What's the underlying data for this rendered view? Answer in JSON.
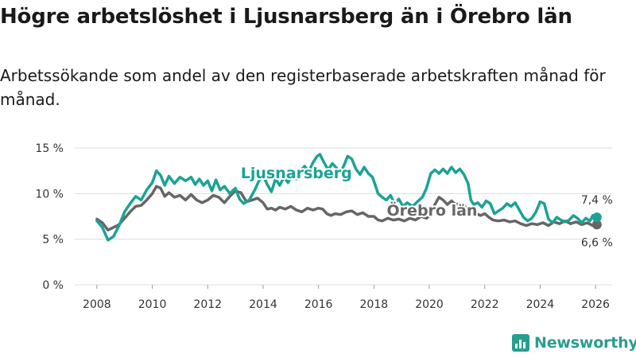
{
  "title": "Högre arbetslöshet i Ljusnarsberg än i Örebro län",
  "subtitle": "Arbetssökande som andel av den registerbaserade arbetskraften månad för månad.",
  "brand": "Newsworthy",
  "colors": {
    "ljusnarsberg": "#1aa395",
    "orebro": "#666666",
    "grid": "#dddddd",
    "brand": "#2a9d8f"
  },
  "chart_data": {
    "type": "line",
    "title": "Högre arbetslöshet i Ljusnarsberg än i Örebro län",
    "xlabel": "",
    "ylabel": "",
    "xlim": [
      2007.2,
      2026.6
    ],
    "ylim": [
      0,
      15
    ],
    "x_ticks": [
      2008,
      2010,
      2012,
      2014,
      2016,
      2018,
      2020,
      2022,
      2024,
      2026
    ],
    "x_tick_labels": [
      "2008",
      "2010",
      "2012",
      "2014",
      "2016",
      "2018",
      "2020",
      "2022",
      "2024",
      "2026"
    ],
    "y_ticks": [
      0,
      5,
      10,
      15
    ],
    "y_tick_labels": [
      "0 %",
      "5 %",
      "10 %",
      "15 %"
    ],
    "grid": true,
    "series": [
      {
        "name": "Ljusnarsberg",
        "label": "Ljusnarsberg",
        "last_label": "7,4 %",
        "last_value": 7.4,
        "points": [
          [
            2008.0,
            7.0
          ],
          [
            2008.2,
            6.3
          ],
          [
            2008.4,
            4.9
          ],
          [
            2008.6,
            5.3
          ],
          [
            2008.8,
            6.5
          ],
          [
            2009.0,
            8.0
          ],
          [
            2009.2,
            8.9
          ],
          [
            2009.4,
            9.7
          ],
          [
            2009.6,
            9.3
          ],
          [
            2009.8,
            10.4
          ],
          [
            2010.0,
            11.2
          ],
          [
            2010.15,
            12.5
          ],
          [
            2010.3,
            12.0
          ],
          [
            2010.45,
            10.9
          ],
          [
            2010.6,
            11.9
          ],
          [
            2010.8,
            11.1
          ],
          [
            2011.0,
            11.8
          ],
          [
            2011.2,
            11.4
          ],
          [
            2011.4,
            11.8
          ],
          [
            2011.55,
            11.0
          ],
          [
            2011.7,
            11.6
          ],
          [
            2011.85,
            10.9
          ],
          [
            2012.0,
            11.4
          ],
          [
            2012.15,
            10.3
          ],
          [
            2012.3,
            11.5
          ],
          [
            2012.45,
            10.4
          ],
          [
            2012.6,
            10.8
          ],
          [
            2012.8,
            10.0
          ],
          [
            2013.0,
            10.6
          ],
          [
            2013.15,
            9.4
          ],
          [
            2013.3,
            8.9
          ],
          [
            2013.5,
            9.3
          ],
          [
            2013.7,
            10.4
          ],
          [
            2013.85,
            11.4
          ],
          [
            2014.0,
            12.0
          ],
          [
            2014.15,
            11.0
          ],
          [
            2014.3,
            10.2
          ],
          [
            2014.45,
            11.6
          ],
          [
            2014.6,
            10.9
          ],
          [
            2014.75,
            11.8
          ],
          [
            2014.9,
            11.2
          ],
          [
            2015.05,
            12.1
          ],
          [
            2015.2,
            11.6
          ],
          [
            2015.35,
            12.5
          ],
          [
            2015.5,
            13.0
          ],
          [
            2015.65,
            12.4
          ],
          [
            2015.8,
            13.4
          ],
          [
            2015.95,
            14.1
          ],
          [
            2016.05,
            14.3
          ],
          [
            2016.2,
            13.4
          ],
          [
            2016.35,
            12.6
          ],
          [
            2016.5,
            13.3
          ],
          [
            2016.65,
            12.8
          ],
          [
            2016.8,
            12.3
          ],
          [
            2016.95,
            13.3
          ],
          [
            2017.05,
            14.1
          ],
          [
            2017.2,
            13.8
          ],
          [
            2017.35,
            12.7
          ],
          [
            2017.5,
            12.1
          ],
          [
            2017.65,
            12.9
          ],
          [
            2017.8,
            12.2
          ],
          [
            2017.95,
            11.8
          ],
          [
            2018.05,
            10.9
          ],
          [
            2018.15,
            10.0
          ],
          [
            2018.3,
            9.6
          ],
          [
            2018.45,
            9.3
          ],
          [
            2018.6,
            9.8
          ],
          [
            2018.75,
            8.9
          ],
          [
            2018.9,
            9.4
          ],
          [
            2019.05,
            8.6
          ],
          [
            2019.2,
            9.0
          ],
          [
            2019.4,
            8.6
          ],
          [
            2019.6,
            9.2
          ],
          [
            2019.75,
            9.6
          ],
          [
            2019.9,
            10.6
          ],
          [
            2020.05,
            12.2
          ],
          [
            2020.2,
            12.6
          ],
          [
            2020.35,
            12.2
          ],
          [
            2020.5,
            12.7
          ],
          [
            2020.65,
            12.2
          ],
          [
            2020.8,
            12.9
          ],
          [
            2020.95,
            12.3
          ],
          [
            2021.1,
            12.7
          ],
          [
            2021.25,
            12.1
          ],
          [
            2021.4,
            11.1
          ],
          [
            2021.5,
            9.3
          ],
          [
            2021.6,
            8.8
          ],
          [
            2021.75,
            9.0
          ],
          [
            2021.9,
            8.5
          ],
          [
            2022.05,
            9.2
          ],
          [
            2022.2,
            8.9
          ],
          [
            2022.35,
            7.8
          ],
          [
            2022.5,
            8.1
          ],
          [
            2022.65,
            8.4
          ],
          [
            2022.8,
            8.9
          ],
          [
            2022.95,
            8.6
          ],
          [
            2023.1,
            9.0
          ],
          [
            2023.25,
            8.2
          ],
          [
            2023.4,
            7.4
          ],
          [
            2023.55,
            7.0
          ],
          [
            2023.7,
            7.3
          ],
          [
            2023.85,
            8.0
          ],
          [
            2024.0,
            9.1
          ],
          [
            2024.15,
            8.9
          ],
          [
            2024.3,
            7.2
          ],
          [
            2024.45,
            6.8
          ],
          [
            2024.6,
            7.4
          ],
          [
            2024.75,
            7.1
          ],
          [
            2024.9,
            6.9
          ],
          [
            2025.05,
            7.1
          ],
          [
            2025.2,
            7.6
          ],
          [
            2025.35,
            7.3
          ],
          [
            2025.5,
            6.8
          ],
          [
            2025.65,
            7.3
          ],
          [
            2025.8,
            7.0
          ],
          [
            2025.9,
            7.6
          ],
          [
            2026.05,
            7.4
          ]
        ]
      },
      {
        "name": "Örebro län",
        "label": "Örebro län",
        "last_label": "6,6 %",
        "last_value": 6.6,
        "points": [
          [
            2008.0,
            7.2
          ],
          [
            2008.2,
            6.8
          ],
          [
            2008.4,
            6.0
          ],
          [
            2008.6,
            6.3
          ],
          [
            2008.8,
            6.6
          ],
          [
            2009.0,
            7.3
          ],
          [
            2009.2,
            8.0
          ],
          [
            2009.4,
            8.6
          ],
          [
            2009.6,
            8.7
          ],
          [
            2009.8,
            9.3
          ],
          [
            2010.0,
            10.0
          ],
          [
            2010.15,
            10.8
          ],
          [
            2010.3,
            10.6
          ],
          [
            2010.45,
            9.7
          ],
          [
            2010.6,
            10.1
          ],
          [
            2010.8,
            9.6
          ],
          [
            2011.0,
            9.8
          ],
          [
            2011.2,
            9.3
          ],
          [
            2011.4,
            9.9
          ],
          [
            2011.6,
            9.3
          ],
          [
            2011.8,
            9.0
          ],
          [
            2012.0,
            9.3
          ],
          [
            2012.2,
            9.8
          ],
          [
            2012.4,
            9.6
          ],
          [
            2012.6,
            9.0
          ],
          [
            2012.8,
            9.7
          ],
          [
            2013.0,
            10.3
          ],
          [
            2013.2,
            10.1
          ],
          [
            2013.4,
            9.1
          ],
          [
            2013.6,
            9.3
          ],
          [
            2013.8,
            9.5
          ],
          [
            2014.0,
            9.0
          ],
          [
            2014.15,
            8.3
          ],
          [
            2014.3,
            8.4
          ],
          [
            2014.45,
            8.2
          ],
          [
            2014.6,
            8.5
          ],
          [
            2014.8,
            8.3
          ],
          [
            2015.0,
            8.6
          ],
          [
            2015.2,
            8.2
          ],
          [
            2015.4,
            8.0
          ],
          [
            2015.6,
            8.4
          ],
          [
            2015.8,
            8.2
          ],
          [
            2016.0,
            8.4
          ],
          [
            2016.15,
            8.3
          ],
          [
            2016.3,
            7.8
          ],
          [
            2016.45,
            7.6
          ],
          [
            2016.6,
            7.8
          ],
          [
            2016.8,
            7.7
          ],
          [
            2017.0,
            8.0
          ],
          [
            2017.2,
            8.1
          ],
          [
            2017.4,
            7.7
          ],
          [
            2017.6,
            7.9
          ],
          [
            2017.8,
            7.5
          ],
          [
            2018.0,
            7.5
          ],
          [
            2018.15,
            7.1
          ],
          [
            2018.3,
            7.0
          ],
          [
            2018.5,
            7.3
          ],
          [
            2018.7,
            7.1
          ],
          [
            2018.9,
            7.2
          ],
          [
            2019.1,
            7.0
          ],
          [
            2019.3,
            7.3
          ],
          [
            2019.5,
            7.1
          ],
          [
            2019.7,
            7.5
          ],
          [
            2019.9,
            7.3
          ],
          [
            2020.05,
            7.7
          ],
          [
            2020.2,
            8.8
          ],
          [
            2020.35,
            9.6
          ],
          [
            2020.5,
            9.3
          ],
          [
            2020.65,
            8.8
          ],
          [
            2020.8,
            9.2
          ],
          [
            2020.95,
            8.8
          ],
          [
            2021.1,
            8.9
          ],
          [
            2021.25,
            8.7
          ],
          [
            2021.4,
            8.2
          ],
          [
            2021.55,
            8.0
          ],
          [
            2021.7,
            7.8
          ],
          [
            2021.85,
            7.6
          ],
          [
            2022.0,
            7.8
          ],
          [
            2022.15,
            7.4
          ],
          [
            2022.3,
            7.1
          ],
          [
            2022.5,
            7.0
          ],
          [
            2022.7,
            7.1
          ],
          [
            2022.9,
            6.9
          ],
          [
            2023.1,
            7.0
          ],
          [
            2023.3,
            6.7
          ],
          [
            2023.5,
            6.5
          ],
          [
            2023.7,
            6.7
          ],
          [
            2023.9,
            6.6
          ],
          [
            2024.1,
            6.8
          ],
          [
            2024.3,
            6.5
          ],
          [
            2024.5,
            6.9
          ],
          [
            2024.7,
            6.7
          ],
          [
            2024.9,
            7.0
          ],
          [
            2025.1,
            6.7
          ],
          [
            2025.3,
            6.9
          ],
          [
            2025.5,
            6.6
          ],
          [
            2025.7,
            6.8
          ],
          [
            2025.9,
            6.5
          ],
          [
            2026.05,
            6.6
          ]
        ]
      }
    ]
  }
}
